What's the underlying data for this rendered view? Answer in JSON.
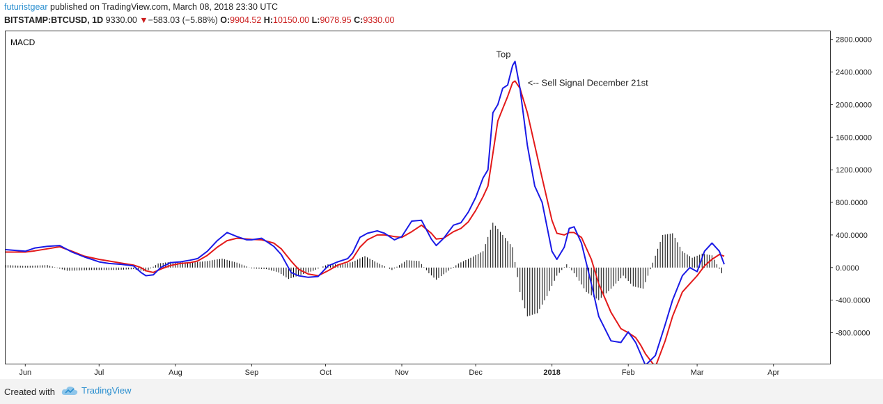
{
  "header": {
    "author": "futuristgear",
    "published": "published on TradingView.com, March 08, 2018 23:30 UTC",
    "symbol": "BITSTAMP:BTCUSD, 1D",
    "last": "9330.00",
    "change": "−583.03 (−5.88%)",
    "o_label": "O:",
    "o_value": "9904.52",
    "h_label": "H:",
    "h_value": "10150.00",
    "l_label": "L:",
    "l_value": "9078.95",
    "c_label": "C:",
    "c_value": "9330.00"
  },
  "footer": {
    "created_with": "Created with",
    "brand": "TradingView"
  },
  "colors": {
    "macd_line": "#1a1ae6",
    "signal_line": "#e31a1a",
    "histogram": "#000000",
    "accent": "#2b8fcf",
    "down": "#cc1e1e"
  },
  "chart_data": {
    "type": "line",
    "title": "MACD",
    "ylim": [
      -1180,
      2900
    ],
    "y_ticks": [
      2800,
      2400,
      2000,
      1600,
      1200,
      800,
      400,
      0,
      -400,
      -800
    ],
    "y_tick_labels": [
      "2800.0000",
      "2400.0000",
      "2000.0000",
      "1600.0000",
      "1200.0000",
      "800.0000",
      "400.0000",
      "0.0000",
      "-400.0000",
      "-800.0000"
    ],
    "x_range": [
      "2017-05-24",
      "2018-04-24"
    ],
    "x_ticks": [
      {
        "date": "2017-06-01",
        "label": "Jun",
        "bold": false
      },
      {
        "date": "2017-07-01",
        "label": "Jul",
        "bold": false
      },
      {
        "date": "2017-08-01",
        "label": "Aug",
        "bold": false
      },
      {
        "date": "2017-09-01",
        "label": "Sep",
        "bold": false
      },
      {
        "date": "2017-10-01",
        "label": "Oct",
        "bold": false
      },
      {
        "date": "2017-11-01",
        "label": "Nov",
        "bold": false
      },
      {
        "date": "2017-12-01",
        "label": "Dec",
        "bold": false
      },
      {
        "date": "2018-01-01",
        "label": "2018",
        "bold": true
      },
      {
        "date": "2018-02-01",
        "label": "Feb",
        "bold": false
      },
      {
        "date": "2018-03-01",
        "label": "Mar",
        "bold": false
      },
      {
        "date": "2018-04-01",
        "label": "Apr",
        "bold": false
      }
    ],
    "annotations": [
      {
        "text": "Top",
        "x": "2017-12-15",
        "y": 2580
      },
      {
        "text": "<-- Sell Signal December 21st",
        "x": "2017-12-21",
        "y": 2230
      }
    ],
    "series": [
      {
        "key": "macd",
        "color": "#1a1ae6",
        "points": [
          [
            "2017-05-24",
            220
          ],
          [
            "2017-06-01",
            200
          ],
          [
            "2017-06-05",
            240
          ],
          [
            "2017-06-10",
            260
          ],
          [
            "2017-06-15",
            270
          ],
          [
            "2017-06-20",
            190
          ],
          [
            "2017-06-25",
            130
          ],
          [
            "2017-07-01",
            70
          ],
          [
            "2017-07-05",
            50
          ],
          [
            "2017-07-10",
            40
          ],
          [
            "2017-07-15",
            20
          ],
          [
            "2017-07-18",
            -60
          ],
          [
            "2017-07-20",
            -100
          ],
          [
            "2017-07-23",
            -90
          ],
          [
            "2017-07-26",
            0
          ],
          [
            "2017-07-30",
            60
          ],
          [
            "2017-08-03",
            70
          ],
          [
            "2017-08-07",
            90
          ],
          [
            "2017-08-10",
            110
          ],
          [
            "2017-08-14",
            200
          ],
          [
            "2017-08-18",
            330
          ],
          [
            "2017-08-22",
            430
          ],
          [
            "2017-08-26",
            380
          ],
          [
            "2017-08-30",
            340
          ],
          [
            "2017-09-01",
            340
          ],
          [
            "2017-09-05",
            360
          ],
          [
            "2017-09-10",
            260
          ],
          [
            "2017-09-13",
            160
          ],
          [
            "2017-09-17",
            -60
          ],
          [
            "2017-09-20",
            -100
          ],
          [
            "2017-09-24",
            -120
          ],
          [
            "2017-09-28",
            -110
          ],
          [
            "2017-10-02",
            20
          ],
          [
            "2017-10-06",
            70
          ],
          [
            "2017-10-10",
            110
          ],
          [
            "2017-10-12",
            180
          ],
          [
            "2017-10-15",
            370
          ],
          [
            "2017-10-18",
            420
          ],
          [
            "2017-10-22",
            450
          ],
          [
            "2017-10-25",
            420
          ],
          [
            "2017-10-29",
            340
          ],
          [
            "2017-11-01",
            380
          ],
          [
            "2017-11-05",
            570
          ],
          [
            "2017-11-09",
            580
          ],
          [
            "2017-11-13",
            350
          ],
          [
            "2017-11-15",
            270
          ],
          [
            "2017-11-18",
            360
          ],
          [
            "2017-11-22",
            520
          ],
          [
            "2017-11-25",
            550
          ],
          [
            "2017-11-28",
            680
          ],
          [
            "2017-12-01",
            860
          ],
          [
            "2017-12-04",
            1100
          ],
          [
            "2017-12-06",
            1200
          ],
          [
            "2017-12-08",
            1900
          ],
          [
            "2017-12-10",
            2000
          ],
          [
            "2017-12-12",
            2200
          ],
          [
            "2017-12-14",
            2240
          ],
          [
            "2017-12-16",
            2480
          ],
          [
            "2017-12-17",
            2530
          ],
          [
            "2017-12-19",
            2200
          ],
          [
            "2017-12-22",
            1500
          ],
          [
            "2017-12-25",
            1000
          ],
          [
            "2017-12-28",
            800
          ],
          [
            "2018-01-01",
            200
          ],
          [
            "2018-01-03",
            100
          ],
          [
            "2018-01-06",
            250
          ],
          [
            "2018-01-08",
            480
          ],
          [
            "2018-01-10",
            500
          ],
          [
            "2018-01-13",
            300
          ],
          [
            "2018-01-17",
            -200
          ],
          [
            "2018-01-20",
            -600
          ],
          [
            "2018-01-25",
            -900
          ],
          [
            "2018-01-29",
            -920
          ],
          [
            "2018-02-01",
            -790
          ],
          [
            "2018-02-04",
            -920
          ],
          [
            "2018-02-06",
            -1060
          ],
          [
            "2018-02-08",
            -1200
          ],
          [
            "2018-02-12",
            -1080
          ],
          [
            "2018-02-16",
            -700
          ],
          [
            "2018-02-19",
            -400
          ],
          [
            "2018-02-23",
            -100
          ],
          [
            "2018-02-26",
            0
          ],
          [
            "2018-03-01",
            -50
          ],
          [
            "2018-03-04",
            200
          ],
          [
            "2018-03-07",
            300
          ],
          [
            "2018-03-10",
            200
          ],
          [
            "2018-03-12",
            40
          ]
        ]
      },
      {
        "key": "signal",
        "color": "#e31a1a",
        "points": [
          [
            "2017-05-24",
            190
          ],
          [
            "2017-06-01",
            190
          ],
          [
            "2017-06-05",
            205
          ],
          [
            "2017-06-10",
            230
          ],
          [
            "2017-06-15",
            255
          ],
          [
            "2017-06-20",
            200
          ],
          [
            "2017-06-25",
            140
          ],
          [
            "2017-07-01",
            100
          ],
          [
            "2017-07-05",
            80
          ],
          [
            "2017-07-10",
            55
          ],
          [
            "2017-07-15",
            30
          ],
          [
            "2017-07-18",
            0
          ],
          [
            "2017-07-20",
            -40
          ],
          [
            "2017-07-23",
            -60
          ],
          [
            "2017-07-26",
            -20
          ],
          [
            "2017-07-30",
            25
          ],
          [
            "2017-08-03",
            50
          ],
          [
            "2017-08-07",
            60
          ],
          [
            "2017-08-10",
            80
          ],
          [
            "2017-08-14",
            150
          ],
          [
            "2017-08-18",
            250
          ],
          [
            "2017-08-22",
            330
          ],
          [
            "2017-08-26",
            360
          ],
          [
            "2017-08-30",
            350
          ],
          [
            "2017-09-01",
            345
          ],
          [
            "2017-09-05",
            340
          ],
          [
            "2017-09-10",
            300
          ],
          [
            "2017-09-13",
            230
          ],
          [
            "2017-09-17",
            80
          ],
          [
            "2017-09-20",
            -20
          ],
          [
            "2017-09-24",
            -80
          ],
          [
            "2017-09-28",
            -100
          ],
          [
            "2017-10-02",
            -40
          ],
          [
            "2017-10-06",
            30
          ],
          [
            "2017-10-10",
            70
          ],
          [
            "2017-10-12",
            110
          ],
          [
            "2017-10-15",
            250
          ],
          [
            "2017-10-18",
            340
          ],
          [
            "2017-10-22",
            400
          ],
          [
            "2017-10-25",
            400
          ],
          [
            "2017-10-29",
            380
          ],
          [
            "2017-11-01",
            370
          ],
          [
            "2017-11-05",
            440
          ],
          [
            "2017-11-09",
            520
          ],
          [
            "2017-11-13",
            420
          ],
          [
            "2017-11-15",
            350
          ],
          [
            "2017-11-18",
            360
          ],
          [
            "2017-11-22",
            440
          ],
          [
            "2017-11-25",
            480
          ],
          [
            "2017-11-28",
            560
          ],
          [
            "2017-12-01",
            700
          ],
          [
            "2017-12-04",
            870
          ],
          [
            "2017-12-06",
            1000
          ],
          [
            "2017-12-08",
            1400
          ],
          [
            "2017-12-10",
            1800
          ],
          [
            "2017-12-12",
            1950
          ],
          [
            "2017-12-14",
            2100
          ],
          [
            "2017-12-16",
            2270
          ],
          [
            "2017-12-17",
            2290
          ],
          [
            "2017-12-19",
            2200
          ],
          [
            "2017-12-22",
            1900
          ],
          [
            "2017-12-25",
            1500
          ],
          [
            "2017-12-28",
            1100
          ],
          [
            "2018-01-01",
            580
          ],
          [
            "2018-01-03",
            420
          ],
          [
            "2018-01-06",
            400
          ],
          [
            "2018-01-08",
            430
          ],
          [
            "2018-01-10",
            430
          ],
          [
            "2018-01-13",
            370
          ],
          [
            "2018-01-17",
            100
          ],
          [
            "2018-01-20",
            -200
          ],
          [
            "2018-01-25",
            -550
          ],
          [
            "2018-01-29",
            -750
          ],
          [
            "2018-02-01",
            -800
          ],
          [
            "2018-02-04",
            -860
          ],
          [
            "2018-02-06",
            -950
          ],
          [
            "2018-02-08",
            -1060
          ],
          [
            "2018-02-12",
            -1220
          ],
          [
            "2018-02-16",
            -900
          ],
          [
            "2018-02-19",
            -600
          ],
          [
            "2018-02-23",
            -300
          ],
          [
            "2018-02-26",
            -200
          ],
          [
            "2018-03-01",
            -100
          ],
          [
            "2018-03-04",
            20
          ],
          [
            "2018-03-07",
            100
          ],
          [
            "2018-03-10",
            160
          ],
          [
            "2018-03-12",
            140
          ]
        ]
      },
      {
        "key": "histogram",
        "color": "#000000",
        "type": "bar",
        "points": [
          [
            "2017-05-24",
            30
          ],
          [
            "2017-06-01",
            20
          ],
          [
            "2017-06-10",
            30
          ],
          [
            "2017-06-18",
            -40
          ],
          [
            "2017-06-28",
            -30
          ],
          [
            "2017-07-08",
            -30
          ],
          [
            "2017-07-15",
            -20
          ],
          [
            "2017-07-20",
            -50
          ],
          [
            "2017-07-25",
            50
          ],
          [
            "2017-07-30",
            70
          ],
          [
            "2017-08-07",
            60
          ],
          [
            "2017-08-14",
            80
          ],
          [
            "2017-08-20",
            110
          ],
          [
            "2017-08-26",
            60
          ],
          [
            "2017-09-01",
            -10
          ],
          [
            "2017-09-07",
            -20
          ],
          [
            "2017-09-12",
            -60
          ],
          [
            "2017-09-16",
            -140
          ],
          [
            "2017-09-20",
            -100
          ],
          [
            "2017-09-26",
            -40
          ],
          [
            "2017-10-02",
            40
          ],
          [
            "2017-10-08",
            40
          ],
          [
            "2017-10-12",
            70
          ],
          [
            "2017-10-17",
            140
          ],
          [
            "2017-10-22",
            60
          ],
          [
            "2017-10-28",
            -30
          ],
          [
            "2017-11-03",
            90
          ],
          [
            "2017-11-08",
            80
          ],
          [
            "2017-11-12",
            -70
          ],
          [
            "2017-11-15",
            -150
          ],
          [
            "2017-11-19",
            -60
          ],
          [
            "2017-11-24",
            50
          ],
          [
            "2017-11-29",
            120
          ],
          [
            "2017-12-04",
            200
          ],
          [
            "2017-12-08",
            550
          ],
          [
            "2017-12-12",
            400
          ],
          [
            "2017-12-16",
            250
          ],
          [
            "2017-12-19",
            -300
          ],
          [
            "2017-12-22",
            -600
          ],
          [
            "2017-12-26",
            -560
          ],
          [
            "2017-12-30",
            -350
          ],
          [
            "2018-01-03",
            -100
          ],
          [
            "2018-01-07",
            40
          ],
          [
            "2018-01-10",
            -70
          ],
          [
            "2018-01-15",
            -300
          ],
          [
            "2018-01-20",
            -400
          ],
          [
            "2018-01-25",
            -260
          ],
          [
            "2018-01-30",
            -100
          ],
          [
            "2018-02-03",
            -230
          ],
          [
            "2018-02-07",
            -260
          ],
          [
            "2018-02-11",
            60
          ],
          [
            "2018-02-15",
            400
          ],
          [
            "2018-02-19",
            420
          ],
          [
            "2018-02-23",
            200
          ],
          [
            "2018-02-27",
            120
          ],
          [
            "2018-03-03",
            170
          ],
          [
            "2018-03-07",
            150
          ],
          [
            "2018-03-11",
            -70
          ]
        ]
      }
    ]
  }
}
